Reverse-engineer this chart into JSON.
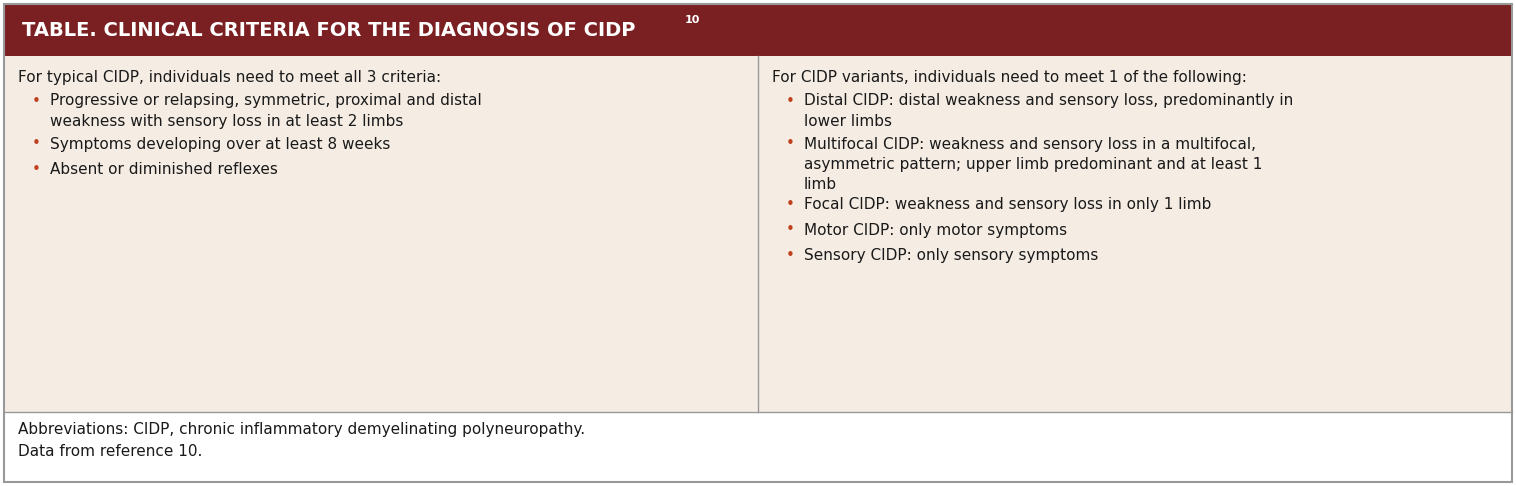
{
  "title": "TABLE. CLINICAL CRITERIA FOR THE DIAGNOSIS OF CIDP",
  "title_superscript": "10",
  "header_bg": "#7B2022",
  "header_text_color": "#FFFFFF",
  "cell_bg": "#F5EDE4",
  "footer_bg": "#FFFFFF",
  "border_color": "#999999",
  "text_color_body": "#1A1A1A",
  "bullet_color": "#C04020",
  "left_header": "For typical CIDP, individuals need to meet all 3 criteria:",
  "left_bullets": [
    "Progressive or relapsing, symmetric, proximal and distal\nweakness with sensory loss in at least 2 limbs",
    "Symptoms developing over at least 8 weeks",
    "Absent or diminished reflexes"
  ],
  "right_header": "For CIDP variants, individuals need to meet 1 of the following:",
  "right_bullets": [
    "Distal CIDP: distal weakness and sensory loss, predominantly in\nlower limbs",
    "Multifocal CIDP: weakness and sensory loss in a multifocal,\nasymmetric pattern; upper limb predominant and at least 1\nlimb",
    "Focal CIDP: weakness and sensory loss in only 1 limb",
    "Motor CIDP: only motor symptoms",
    "Sensory CIDP: only sensory symptoms"
  ],
  "footer_line1": "Abbreviations: CIDP, chronic inflammatory demyelinating polyneuropathy.",
  "footer_line2": "Data from reference 10.",
  "figwidth": 15.16,
  "figheight": 4.86,
  "dpi": 100
}
